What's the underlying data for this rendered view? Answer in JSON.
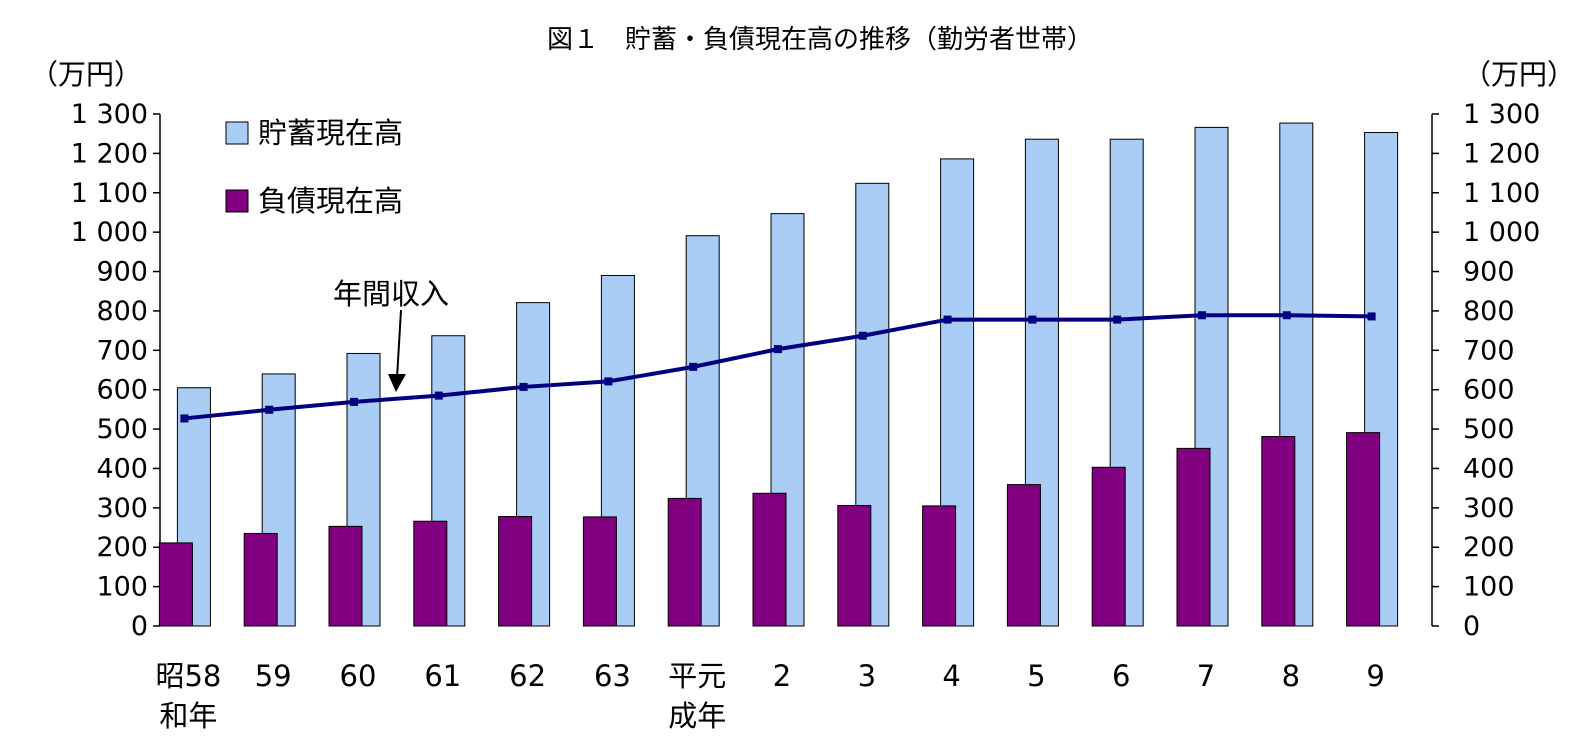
{
  "chart_data": {
    "type": "bar",
    "title": "図１　貯蓄・負債現在高の推移（勤労者世帯）",
    "y_unit_left": "（万円）",
    "y_unit_right": "（万円）",
    "ylim": [
      0,
      1300
    ],
    "y_ticks": [
      0,
      100,
      200,
      300,
      400,
      500,
      600,
      700,
      800,
      900,
      1000,
      1100,
      1200,
      1300
    ],
    "y_tick_labels": [
      "0",
      "100",
      "200",
      "300",
      "400",
      "500",
      "600",
      "700",
      "800",
      "900",
      "1 000",
      "1 100",
      "1 200",
      "1 300"
    ],
    "categories": [
      [
        "昭58",
        "和年"
      ],
      [
        "59"
      ],
      [
        "60"
      ],
      [
        "61"
      ],
      [
        "62"
      ],
      [
        "63"
      ],
      [
        "平元",
        "成年"
      ],
      [
        "2"
      ],
      [
        "3"
      ],
      [
        "4"
      ],
      [
        "5"
      ],
      [
        "6"
      ],
      [
        "7"
      ],
      [
        "8"
      ],
      [
        "9"
      ]
    ],
    "series": [
      {
        "name": "貯蓄現在高",
        "type": "bar",
        "color": "#A9CDF4",
        "values": [
          605,
          640,
          692,
          737,
          821,
          890,
          991,
          1047,
          1124,
          1186,
          1236,
          1236,
          1266,
          1277,
          1253
        ]
      },
      {
        "name": "負債現在高",
        "type": "bar",
        "color": "#800080",
        "values": [
          211,
          235,
          253,
          266,
          278,
          277,
          324,
          337,
          306,
          305,
          359,
          403,
          451,
          481,
          491
        ]
      },
      {
        "name": "年間収入",
        "type": "line",
        "color": "#000080",
        "values": [
          527,
          549,
          569,
          585,
          607,
          621,
          658,
          703,
          737,
          778,
          778,
          778,
          789,
          789,
          786
        ]
      }
    ],
    "annotation": {
      "text": "年間収入",
      "points_to_index": 2
    },
    "legend": "top-left",
    "grid": false
  }
}
